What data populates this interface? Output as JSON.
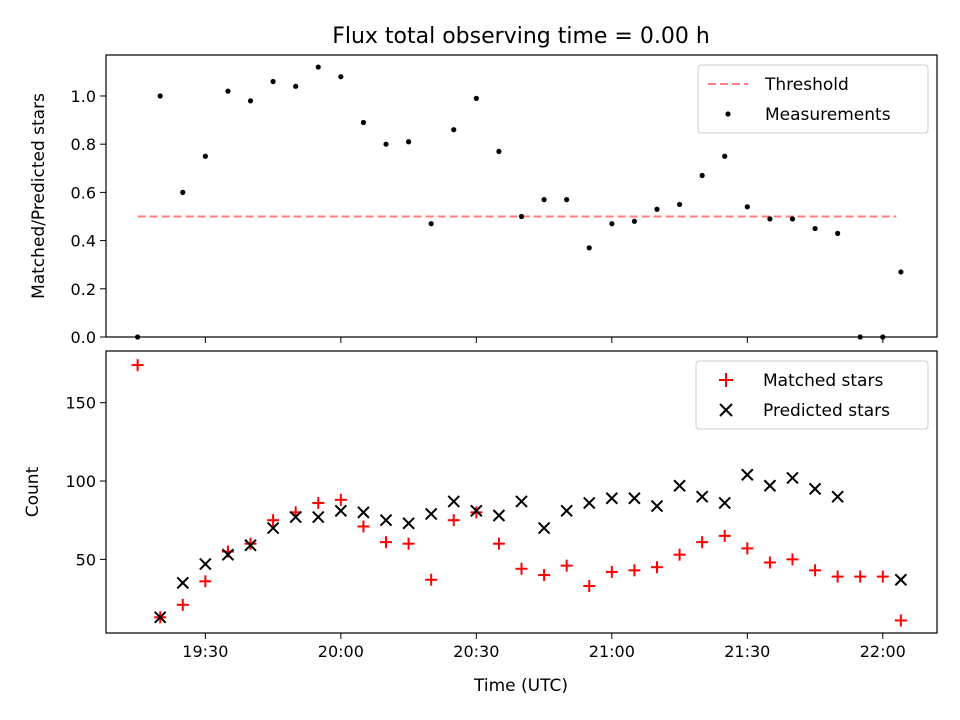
{
  "figure": {
    "title": "Flux total observing time = 0.00 h",
    "xlabel": "Time (UTC)"
  },
  "chart_data": [
    {
      "type": "scatter",
      "title": "Flux total observing time = 0.00 h",
      "xlabel": "",
      "ylabel": "Matched/Predicted stars",
      "xlim": [
        "19:08",
        "22:12"
      ],
      "ylim": [
        0,
        1.17
      ],
      "yticks": [
        0.0,
        0.2,
        0.4,
        0.6,
        0.8,
        1.0
      ],
      "ytick_labels": [
        "0.0",
        "0.2",
        "0.4",
        "0.6",
        "0.8",
        "1.0"
      ],
      "grid": false,
      "legend": "top-right",
      "threshold": {
        "name": "Threshold",
        "value": 0.5,
        "x_start": "19:15",
        "x_end": "22:03",
        "style": "dashed",
        "color": "#ff7f7f"
      },
      "series": [
        {
          "name": "Measurements",
          "color": "#000000",
          "marker": "dot",
          "x": [
            "19:15",
            "19:20",
            "19:25",
            "19:30",
            "19:35",
            "19:40",
            "19:45",
            "19:50",
            "19:55",
            "20:00",
            "20:05",
            "20:10",
            "20:15",
            "20:20",
            "20:25",
            "20:30",
            "20:35",
            "20:40",
            "20:45",
            "20:50",
            "20:55",
            "21:00",
            "21:05",
            "21:10",
            "21:15",
            "21:20",
            "21:25",
            "21:30",
            "21:35",
            "21:40",
            "21:45",
            "21:50",
            "21:55",
            "22:00",
            "22:04"
          ],
          "values": [
            0.0,
            1.0,
            0.6,
            0.75,
            1.02,
            0.98,
            1.06,
            1.04,
            1.12,
            1.08,
            0.89,
            0.8,
            0.81,
            0.47,
            0.86,
            0.99,
            0.77,
            0.5,
            0.57,
            0.57,
            0.37,
            0.47,
            0.48,
            0.53,
            0.55,
            0.67,
            0.75,
            0.54,
            0.49,
            0.49,
            0.45,
            0.43,
            0.0,
            0.0,
            0.27
          ]
        }
      ]
    },
    {
      "type": "scatter",
      "title": "",
      "xlabel": "Time (UTC)",
      "ylabel": "Count",
      "xlim": [
        "19:08",
        "22:12"
      ],
      "ylim": [
        3,
        183
      ],
      "yticks": [
        50,
        100,
        150
      ],
      "ytick_labels": [
        "50",
        "100",
        "150"
      ],
      "xticks": [
        "19:30",
        "20:00",
        "20:30",
        "21:00",
        "21:30",
        "22:00"
      ],
      "xtick_labels": [
        "19:30",
        "20:00",
        "20:30",
        "21:00",
        "21:30",
        "22:00"
      ],
      "grid": false,
      "legend": "top-right",
      "series": [
        {
          "name": "Matched stars",
          "color": "#ff0000",
          "marker": "plus",
          "x": [
            "19:15",
            "19:20",
            "19:25",
            "19:30",
            "19:35",
            "19:40",
            "19:45",
            "19:50",
            "19:55",
            "20:00",
            "20:05",
            "20:10",
            "20:15",
            "20:20",
            "20:25",
            "20:30",
            "20:35",
            "20:40",
            "20:45",
            "20:50",
            "20:55",
            "21:00",
            "21:05",
            "21:10",
            "21:15",
            "21:20",
            "21:25",
            "21:30",
            "21:35",
            "21:40",
            "21:45",
            "21:50",
            "21:55",
            "22:00",
            "22:04"
          ],
          "values": [
            174,
            13,
            21,
            36,
            55,
            60,
            75,
            80,
            86,
            88,
            71,
            61,
            60,
            37,
            75,
            80,
            60,
            44,
            40,
            46,
            33,
            42,
            43,
            45,
            53,
            61,
            65,
            57,
            48,
            50,
            43,
            39,
            39,
            39,
            11
          ]
        },
        {
          "name": "Predicted stars",
          "color": "#000000",
          "marker": "x",
          "x": [
            "19:20",
            "19:25",
            "19:30",
            "19:35",
            "19:40",
            "19:45",
            "19:50",
            "19:55",
            "20:00",
            "20:05",
            "20:10",
            "20:15",
            "20:20",
            "20:25",
            "20:30",
            "20:35",
            "20:40",
            "20:45",
            "20:50",
            "20:55",
            "21:00",
            "21:05",
            "21:10",
            "21:15",
            "21:20",
            "21:25",
            "21:30",
            "21:35",
            "21:40",
            "21:45",
            "21:50",
            "22:04"
          ],
          "values": [
            13,
            35,
            47,
            53,
            59,
            70,
            77,
            77,
            81,
            80,
            75,
            73,
            79,
            87,
            81,
            78,
            87,
            70,
            81,
            86,
            89,
            89,
            84,
            97,
            90,
            86,
            104,
            97,
            102,
            95,
            90,
            37
          ]
        }
      ]
    }
  ]
}
